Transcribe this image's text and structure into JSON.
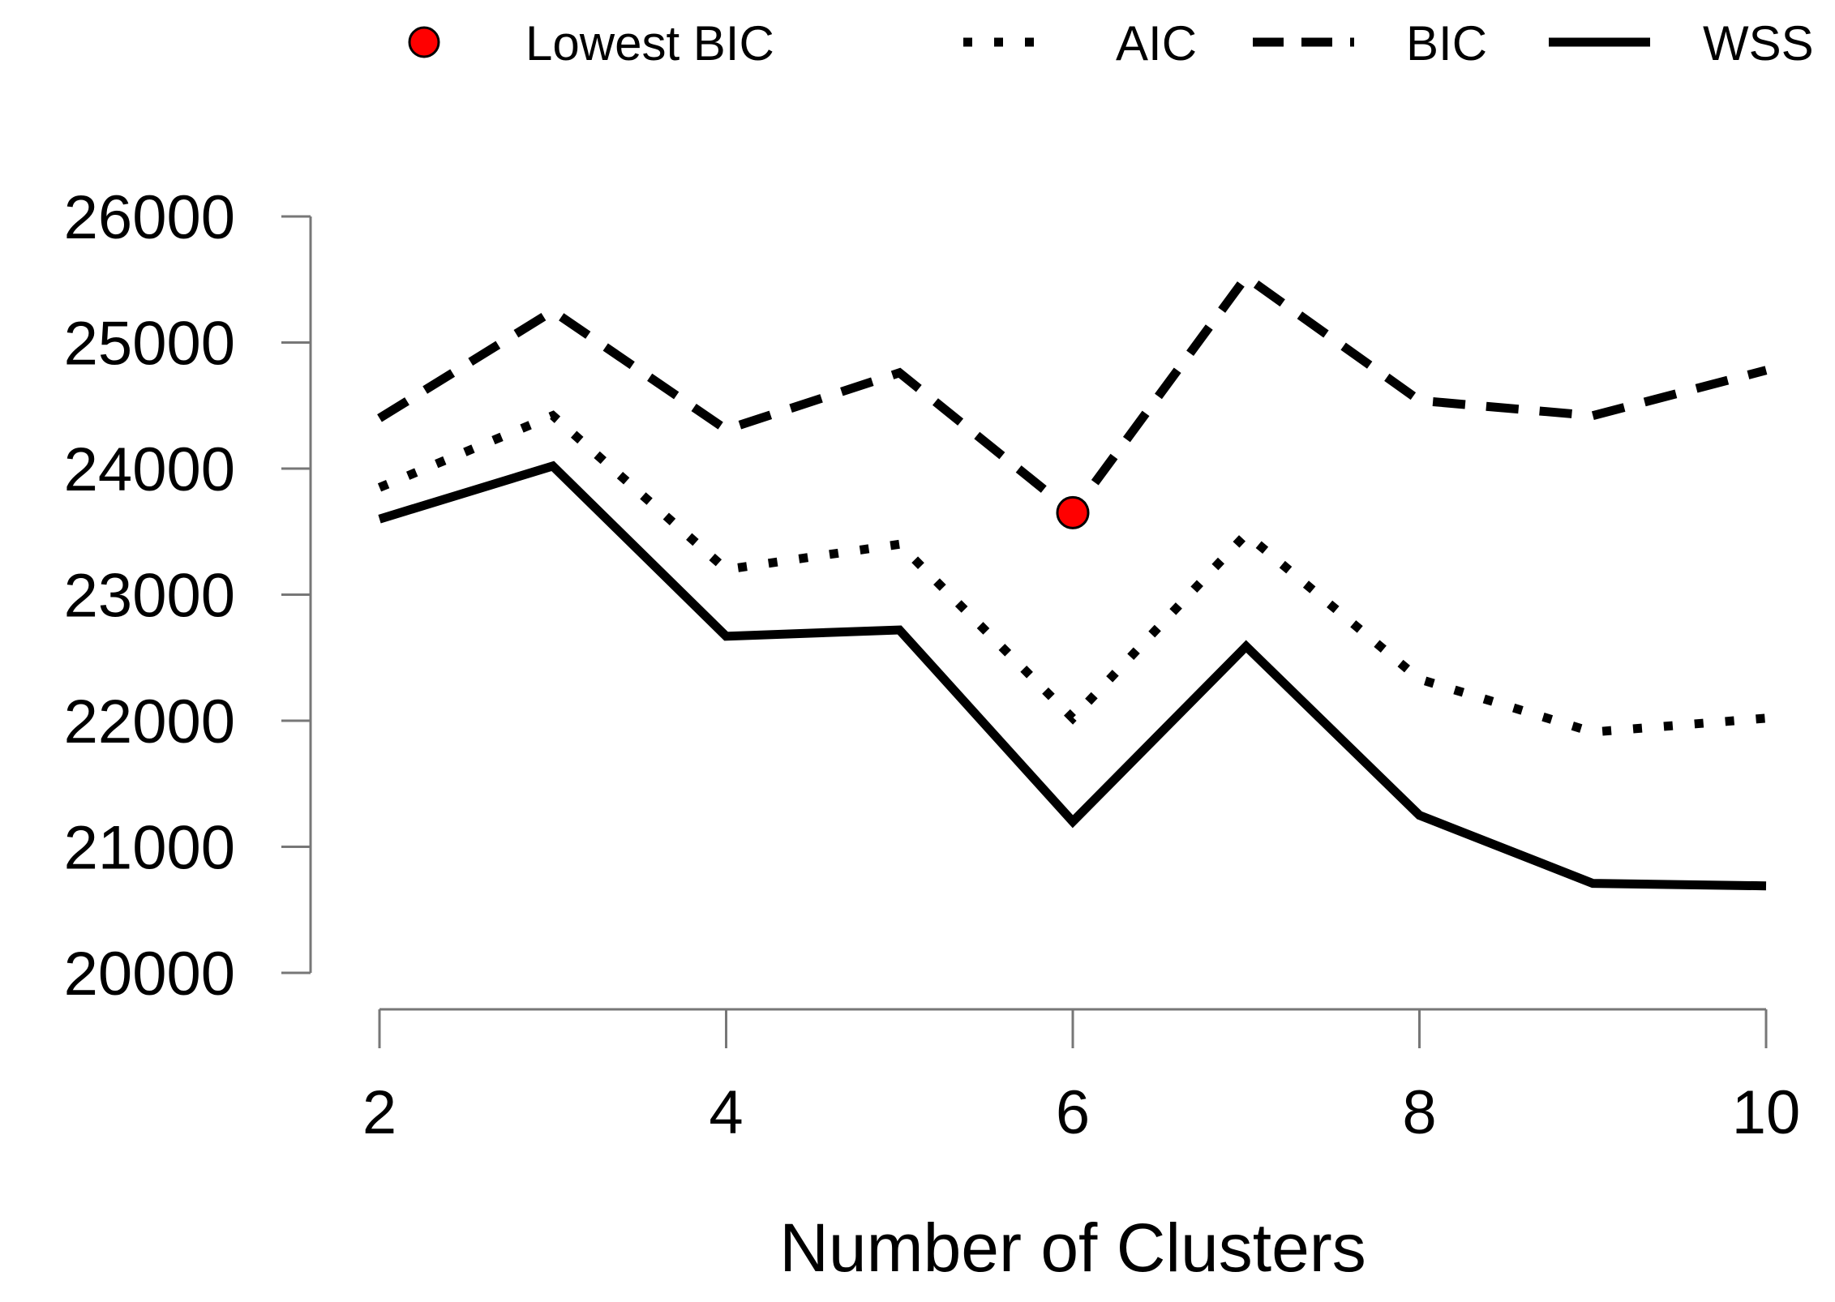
{
  "chart_data": {
    "type": "line",
    "title": "",
    "xlabel": "Number of Clusters",
    "ylabel": "",
    "xlim": [
      2,
      10
    ],
    "ylim": [
      20000,
      26000
    ],
    "x_ticks": [
      "2",
      "4",
      "6",
      "8",
      "10"
    ],
    "y_ticks": [
      "20000",
      "21000",
      "22000",
      "23000",
      "24000",
      "25000",
      "26000"
    ],
    "x": [
      2,
      3,
      4,
      5,
      6,
      7,
      8,
      9,
      10
    ],
    "series": [
      {
        "name": "AIC",
        "style": "dotted",
        "values": [
          23850,
          24420,
          23200,
          23400,
          22020,
          23480,
          22330,
          21910,
          22020
        ]
      },
      {
        "name": "BIC",
        "style": "dashed",
        "values": [
          24400,
          25250,
          24310,
          24760,
          23650,
          25520,
          24540,
          24420,
          24780
        ]
      },
      {
        "name": "WSS",
        "style": "solid",
        "values": [
          23600,
          24020,
          22670,
          22720,
          21200,
          22590,
          21250,
          20710,
          20690
        ]
      }
    ],
    "highlight": {
      "name": "Lowest BIC",
      "x": 6,
      "y": 23650,
      "color": "#ff0000"
    },
    "legend": {
      "position": "top",
      "entries": [
        "Lowest BIC",
        "AIC",
        "BIC",
        "WSS"
      ]
    },
    "grid": false,
    "line_color": "#000000",
    "axis_color": "#777777"
  }
}
